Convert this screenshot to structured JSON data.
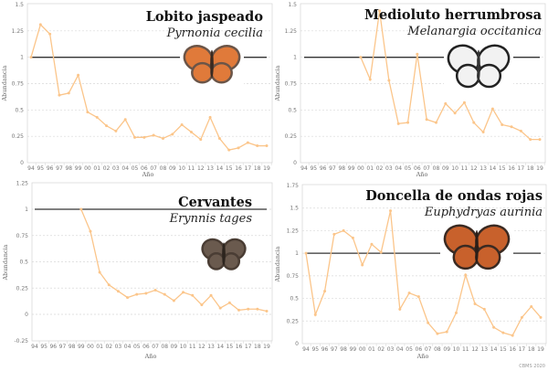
{
  "credit": "CBMS 2020",
  "colors": {
    "series": "#fbc58a",
    "reference_line": "#333333",
    "grid": "#d9d9d9",
    "frame": "#d9d9d9"
  },
  "chart_data": [
    {
      "type": "line",
      "title": "Lobito jaspeado",
      "subtitle": "Pyrnonia cecilia",
      "xlabel": "Año",
      "ylabel": "Abundancia",
      "categories": [
        "94",
        "95",
        "96",
        "97",
        "98",
        "99",
        "00",
        "01",
        "02",
        "03",
        "04",
        "05",
        "06",
        "07",
        "08",
        "09",
        "10",
        "11",
        "12",
        "13",
        "14",
        "15",
        "16",
        "17",
        "18",
        "19"
      ],
      "values": [
        1.0,
        1.31,
        1.22,
        0.64,
        0.66,
        0.83,
        0.48,
        0.43,
        0.35,
        0.3,
        0.41,
        0.24,
        0.24,
        0.26,
        0.23,
        0.27,
        0.36,
        0.29,
        0.22,
        0.43,
        0.23,
        0.12,
        0.14,
        0.19,
        0.16,
        0.16
      ],
      "reference_line": 1,
      "ylim": [
        0,
        1.5
      ],
      "yticks": [
        "0",
        "0.25",
        "0.5",
        "0.75",
        "1",
        "1.25",
        "1.5"
      ],
      "grid": true,
      "icon": "butterfly-brown-orange-icon"
    },
    {
      "type": "line",
      "title": "Medioluto herrumbrosa",
      "subtitle": "Melanargia occitanica",
      "xlabel": "Año",
      "ylabel": "Abundancia",
      "categories": [
        "94",
        "95",
        "96",
        "97",
        "98",
        "99",
        "00",
        "01",
        "02",
        "03",
        "04",
        "05",
        "06",
        "07",
        "08",
        "09",
        "10",
        "11",
        "12",
        "13",
        "14",
        "15",
        "16",
        "17",
        "18",
        "19"
      ],
      "values": [
        null,
        null,
        null,
        null,
        null,
        null,
        1.0,
        0.79,
        1.44,
        0.78,
        0.37,
        0.38,
        1.03,
        0.41,
        0.38,
        0.56,
        0.47,
        0.57,
        0.38,
        0.29,
        0.51,
        0.36,
        0.34,
        0.3,
        0.22,
        0.22
      ],
      "reference_line": 1,
      "ylim": [
        0,
        1.5
      ],
      "yticks": [
        "0",
        "0.25",
        "0.5",
        "0.75",
        "1",
        "1.25",
        "1.5"
      ],
      "grid": true,
      "icon": "butterfly-black-white-icon"
    },
    {
      "type": "line",
      "title": "Cervantes",
      "subtitle": "Erynnis tages",
      "xlabel": "Año",
      "ylabel": "Abundancia",
      "categories": [
        "94",
        "95",
        "96",
        "97",
        "98",
        "99",
        "00",
        "01",
        "02",
        "03",
        "04",
        "05",
        "06",
        "07",
        "08",
        "09",
        "10",
        "11",
        "12",
        "13",
        "14",
        "15",
        "16",
        "17",
        "18",
        "19"
      ],
      "values": [
        null,
        null,
        null,
        null,
        null,
        1.0,
        0.79,
        0.4,
        0.28,
        0.22,
        0.16,
        0.19,
        0.2,
        0.23,
        0.19,
        0.13,
        0.21,
        0.18,
        0.09,
        0.18,
        0.06,
        0.11,
        0.04,
        0.05,
        0.05,
        0.03
      ],
      "reference_line": 1,
      "ylim": [
        -0.25,
        1.25
      ],
      "yticks": [
        "-0.25",
        "0",
        "0.25",
        "0.5",
        "0.75",
        "1",
        "1.25"
      ],
      "grid": true,
      "icon": "butterfly-dark-brown-icon"
    },
    {
      "type": "line",
      "title": "Doncella de ondas rojas",
      "subtitle": "Euphydryas aurinia",
      "xlabel": "Año",
      "ylabel": "Abundancia",
      "categories": [
        "94",
        "95",
        "96",
        "97",
        "98",
        "99",
        "00",
        "01",
        "02",
        "03",
        "04",
        "05",
        "06",
        "07",
        "08",
        "09",
        "10",
        "11",
        "12",
        "13",
        "14",
        "15",
        "16",
        "17",
        "18",
        "19"
      ],
      "values": [
        1.0,
        0.32,
        0.58,
        1.21,
        1.25,
        1.17,
        0.87,
        1.1,
        1.01,
        1.47,
        0.38,
        0.56,
        0.52,
        0.23,
        0.11,
        0.13,
        0.34,
        0.76,
        0.44,
        0.38,
        0.18,
        0.12,
        0.09,
        0.29,
        0.41,
        0.29
      ],
      "reference_line": 1,
      "ylim": [
        0,
        1.75
      ],
      "yticks": [
        "0",
        "0.25",
        "0.5",
        "0.75",
        "1",
        "1.25",
        "1.5",
        "1.75"
      ],
      "grid": true,
      "icon": "butterfly-checkered-orange-icon"
    }
  ]
}
